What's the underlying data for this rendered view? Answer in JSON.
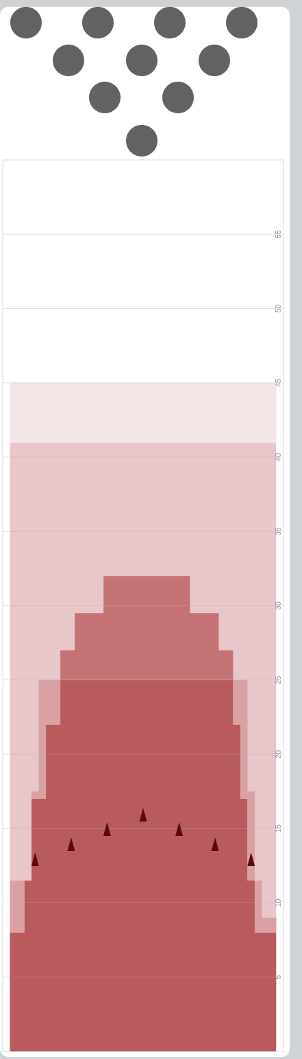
{
  "chart_data": {
    "type": "area",
    "stacked": true,
    "categories": [
      null,
      null,
      null,
      null,
      null,
      null,
      null,
      null,
      null,
      null,
      null,
      null,
      null,
      null,
      null,
      null,
      null,
      null,
      null,
      null,
      null,
      null,
      null,
      null,
      null,
      null,
      null,
      null,
      null,
      null,
      null,
      null,
      null,
      null,
      null,
      null,
      null
    ],
    "series": [
      {
        "color": "#b95a5c",
        "values": [
          8,
          8,
          11.5,
          17,
          17,
          22,
          22,
          25,
          25,
          25,
          25,
          25,
          25,
          25,
          25,
          25,
          25,
          25,
          25,
          25,
          25,
          25,
          25,
          25,
          25,
          25,
          25,
          25,
          25,
          25,
          25,
          22,
          17,
          11.5,
          8,
          8,
          8
        ]
      },
      {
        "color": "#d9a1a4",
        "values": [
          3.5,
          3.5,
          0,
          0.5,
          8,
          3,
          3,
          0,
          0,
          0,
          0,
          0,
          0,
          0,
          0,
          0,
          0,
          0,
          0,
          0,
          0,
          0,
          0,
          0,
          0,
          0,
          0,
          0,
          0,
          0,
          0,
          3,
          8,
          6,
          3.5,
          1,
          1
        ]
      },
      {
        "color": "#c57375",
        "values": [
          0,
          0,
          0,
          0,
          0,
          0,
          0,
          2,
          2,
          4.5,
          4.5,
          4.5,
          4.5,
          7,
          7,
          7,
          7,
          7,
          7,
          7,
          7,
          7,
          7,
          7,
          7,
          4.5,
          4.5,
          4.5,
          4.5,
          2,
          2,
          0,
          0,
          0,
          0,
          0,
          0
        ]
      }
    ],
    "bands": [
      {
        "axis": "y",
        "from": 0,
        "to": 41,
        "color": "#e8c7ca"
      },
      {
        "axis": "y",
        "from": 41,
        "to": 45,
        "color": "#f3e6e7"
      }
    ],
    "ylim": [
      0,
      60
    ],
    "yticks": [
      5,
      10,
      15,
      20,
      25,
      30,
      35,
      40,
      45,
      50,
      55
    ],
    "grid": true,
    "tick_labels": "y"
  }
}
